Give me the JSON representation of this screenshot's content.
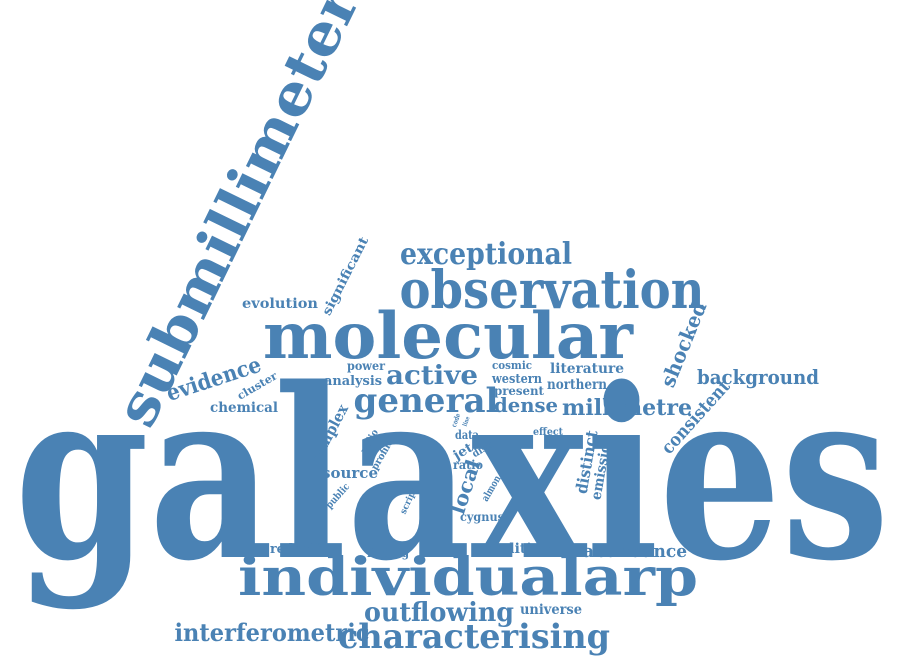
{
  "cloud": {
    "color": "#4a82b4",
    "words": {
      "galaxies": "galaxies",
      "submillimeter": "submillimeter",
      "molecular": "molecular",
      "observation": "observation",
      "exceptional": "exceptional",
      "individualarp": "individualarp",
      "characterising": "characterising",
      "interferometric": "interferometric",
      "outflowing": "outflowing",
      "general": "general",
      "active": "active",
      "millimetre": "millimetre",
      "dense": "dense",
      "background": "background",
      "shocked": "shocked",
      "consistent": "consistent",
      "evidence": "evidence",
      "chemical": "chemical",
      "evolution": "evolution",
      "significant": "significant",
      "cluster": "cluster",
      "power": "power",
      "analysis": "analysis",
      "cosmic": "cosmic",
      "western": "western",
      "present": "present",
      "literature": "literature",
      "northern": "northern",
      "complex": "complex",
      "source": "source",
      "public": "public",
      "radio": "radio",
      "profile": "profile",
      "script": "script",
      "code": "code",
      "line": "line",
      "data": "data",
      "jet": "jet",
      "disk": "disk",
      "ratio": "ratio",
      "local": "local",
      "almon": "almon",
      "cygnus": "cygnus",
      "effect": "effect",
      "distinct": "distinct",
      "emission": "emission",
      "redshift": "redshift",
      "finding": "finding",
      "condition": "condition",
      "abundance": "abundance",
      "universe": "universe"
    }
  }
}
